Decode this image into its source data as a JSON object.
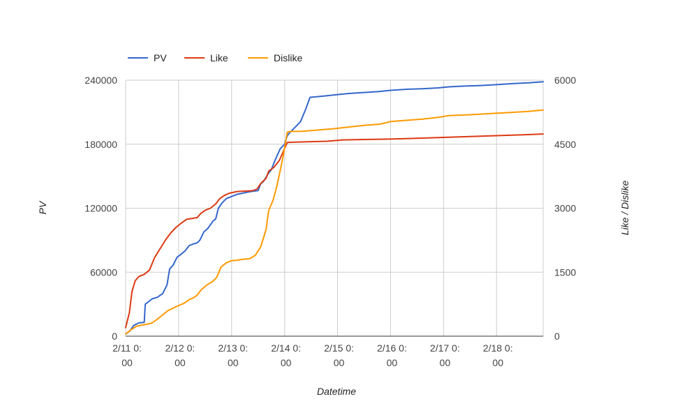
{
  "chart_data": {
    "type": "line",
    "title": "",
    "xlabel": "Datetime",
    "ylabel": "PV",
    "y2label": "Like / Dislike",
    "legend_position": "top-left",
    "grid": true,
    "xlim": [
      0,
      7.88
    ],
    "ylim": [
      0,
      240000
    ],
    "y2lim": [
      0,
      6000
    ],
    "x_ticks": [
      {
        "x": 0,
        "label_line1": "2/11 0:",
        "label_line2": "00"
      },
      {
        "x": 1,
        "label_line1": "2/12 0:",
        "label_line2": "00"
      },
      {
        "x": 2,
        "label_line1": "2/13 0:",
        "label_line2": "00"
      },
      {
        "x": 3,
        "label_line1": "2/14 0:",
        "label_line2": "00"
      },
      {
        "x": 4,
        "label_line1": "2/15 0:",
        "label_line2": "00"
      },
      {
        "x": 5,
        "label_line1": "2/16 0:",
        "label_line2": "00"
      },
      {
        "x": 6,
        "label_line1": "2/17 0:",
        "label_line2": "00"
      },
      {
        "x": 7,
        "label_line1": "2/18 0:",
        "label_line2": "00"
      }
    ],
    "y_ticks": [
      "0",
      "60000",
      "120000",
      "180000",
      "240000"
    ],
    "y2_ticks": [
      "0",
      "1500",
      "3000",
      "4500",
      "6000"
    ],
    "series": [
      {
        "name": "PV",
        "axis": "left",
        "color": "#3366cc",
        "points": [
          [
            0,
            2000
          ],
          [
            0.08,
            5000
          ],
          [
            0.15,
            10000
          ],
          [
            0.25,
            12500
          ],
          [
            0.35,
            13000
          ],
          [
            0.37,
            30000
          ],
          [
            0.45,
            33000
          ],
          [
            0.5,
            35000
          ],
          [
            0.6,
            36500
          ],
          [
            0.7,
            40000
          ],
          [
            0.78,
            48000
          ],
          [
            0.83,
            63000
          ],
          [
            0.9,
            67000
          ],
          [
            0.97,
            74000
          ],
          [
            1.05,
            77000
          ],
          [
            1.12,
            80000
          ],
          [
            1.2,
            85000
          ],
          [
            1.28,
            86500
          ],
          [
            1.35,
            87500
          ],
          [
            1.4,
            90000
          ],
          [
            1.48,
            98000
          ],
          [
            1.55,
            101000
          ],
          [
            1.65,
            108000
          ],
          [
            1.7,
            110000
          ],
          [
            1.75,
            120000
          ],
          [
            1.82,
            125000
          ],
          [
            1.9,
            129000
          ],
          [
            2.0,
            131000
          ],
          [
            2.1,
            133000
          ],
          [
            2.2,
            134000
          ],
          [
            2.35,
            135500
          ],
          [
            2.5,
            136500
          ],
          [
            2.55,
            143000
          ],
          [
            2.6,
            145000
          ],
          [
            2.7,
            153000
          ],
          [
            2.75,
            156000
          ],
          [
            2.82,
            165000
          ],
          [
            2.92,
            176000
          ],
          [
            3.0,
            180000
          ],
          [
            3.05,
            188000
          ],
          [
            3.1,
            191000
          ],
          [
            3.2,
            196000
          ],
          [
            3.3,
            201000
          ],
          [
            3.4,
            213000
          ],
          [
            3.48,
            224000
          ],
          [
            3.6,
            224500
          ],
          [
            3.8,
            225500
          ],
          [
            4.0,
            226500
          ],
          [
            4.2,
            227500
          ],
          [
            4.5,
            228500
          ],
          [
            4.8,
            229500
          ],
          [
            5.0,
            230500
          ],
          [
            5.3,
            231500
          ],
          [
            5.6,
            232000
          ],
          [
            5.9,
            232800
          ],
          [
            6.1,
            233800
          ],
          [
            6.4,
            234500
          ],
          [
            6.7,
            235000
          ],
          [
            7.0,
            235800
          ],
          [
            7.3,
            236800
          ],
          [
            7.6,
            237500
          ],
          [
            7.88,
            238500
          ]
        ]
      },
      {
        "name": "Like",
        "axis": "right",
        "color": "#dc3912",
        "points": [
          [
            0,
            200
          ],
          [
            0.07,
            550
          ],
          [
            0.12,
            1050
          ],
          [
            0.18,
            1300
          ],
          [
            0.25,
            1400
          ],
          [
            0.35,
            1450
          ],
          [
            0.45,
            1550
          ],
          [
            0.55,
            1850
          ],
          [
            0.65,
            2050
          ],
          [
            0.75,
            2250
          ],
          [
            0.85,
            2420
          ],
          [
            0.95,
            2550
          ],
          [
            1.05,
            2650
          ],
          [
            1.15,
            2740
          ],
          [
            1.25,
            2760
          ],
          [
            1.35,
            2780
          ],
          [
            1.42,
            2880
          ],
          [
            1.5,
            2950
          ],
          [
            1.6,
            3000
          ],
          [
            1.7,
            3100
          ],
          [
            1.78,
            3230
          ],
          [
            1.85,
            3290
          ],
          [
            1.95,
            3350
          ],
          [
            2.1,
            3390
          ],
          [
            2.25,
            3400
          ],
          [
            2.4,
            3410
          ],
          [
            2.48,
            3450
          ],
          [
            2.55,
            3580
          ],
          [
            2.65,
            3700
          ],
          [
            2.7,
            3870
          ],
          [
            2.8,
            3960
          ],
          [
            2.9,
            4120
          ],
          [
            3.0,
            4400
          ],
          [
            3.05,
            4540
          ],
          [
            3.2,
            4550
          ],
          [
            3.5,
            4560
          ],
          [
            3.8,
            4570
          ],
          [
            4.1,
            4600
          ],
          [
            4.5,
            4610
          ],
          [
            5.0,
            4620
          ],
          [
            5.5,
            4640
          ],
          [
            6.0,
            4660
          ],
          [
            6.5,
            4680
          ],
          [
            7.0,
            4700
          ],
          [
            7.5,
            4720
          ],
          [
            7.88,
            4740
          ]
        ]
      },
      {
        "name": "Dislike",
        "axis": "right",
        "color": "#ff9900",
        "points": [
          [
            0,
            50
          ],
          [
            0.1,
            150
          ],
          [
            0.2,
            230
          ],
          [
            0.3,
            260
          ],
          [
            0.4,
            280
          ],
          [
            0.5,
            310
          ],
          [
            0.6,
            400
          ],
          [
            0.7,
            500
          ],
          [
            0.8,
            600
          ],
          [
            0.9,
            660
          ],
          [
            1.0,
            720
          ],
          [
            1.1,
            770
          ],
          [
            1.2,
            860
          ],
          [
            1.28,
            900
          ],
          [
            1.35,
            960
          ],
          [
            1.42,
            1080
          ],
          [
            1.52,
            1190
          ],
          [
            1.65,
            1290
          ],
          [
            1.72,
            1380
          ],
          [
            1.8,
            1620
          ],
          [
            1.9,
            1720
          ],
          [
            2.0,
            1770
          ],
          [
            2.1,
            1780
          ],
          [
            2.2,
            1800
          ],
          [
            2.35,
            1820
          ],
          [
            2.45,
            1900
          ],
          [
            2.55,
            2100
          ],
          [
            2.65,
            2500
          ],
          [
            2.7,
            2950
          ],
          [
            2.78,
            3180
          ],
          [
            2.85,
            3500
          ],
          [
            2.92,
            3900
          ],
          [
            2.97,
            4200
          ],
          [
            3.05,
            4780
          ],
          [
            3.12,
            4800
          ],
          [
            3.3,
            4800
          ],
          [
            3.6,
            4830
          ],
          [
            3.9,
            4860
          ],
          [
            4.2,
            4900
          ],
          [
            4.5,
            4940
          ],
          [
            4.8,
            4970
          ],
          [
            5.0,
            5030
          ],
          [
            5.3,
            5060
          ],
          [
            5.6,
            5090
          ],
          [
            5.9,
            5130
          ],
          [
            6.1,
            5170
          ],
          [
            6.5,
            5190
          ],
          [
            6.9,
            5220
          ],
          [
            7.2,
            5240
          ],
          [
            7.6,
            5270
          ],
          [
            7.88,
            5300
          ]
        ]
      }
    ]
  }
}
